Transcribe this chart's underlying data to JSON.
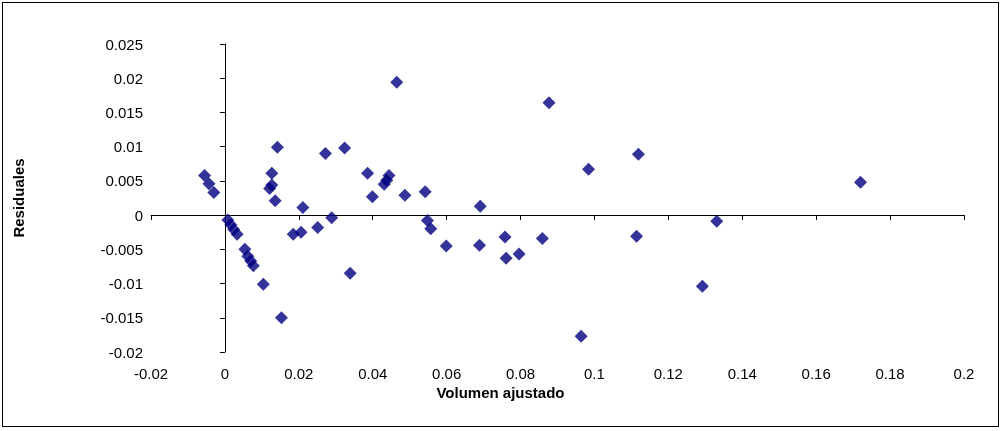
{
  "chart_data": {
    "type": "scatter",
    "xlabel": "Volumen ajustado",
    "ylabel": "Residuales",
    "xlim": [
      -0.02,
      0.2
    ],
    "xticks": [
      -0.02,
      0,
      0.02,
      0.04,
      0.06,
      0.08,
      0.1,
      0.12,
      0.14,
      0.16,
      0.18,
      0.2
    ],
    "ylim": [
      -0.02,
      0.025
    ],
    "yticks": [
      -0.02,
      -0.015,
      -0.01,
      -0.005,
      0,
      0.005,
      0.01,
      0.015,
      0.02,
      0.025
    ],
    "marker": "diamond",
    "series": [
      {
        "color": "#000080",
        "x": [
          -0.0055,
          -0.0043,
          -0.003,
          0.0008,
          0.0016,
          0.0024,
          0.0033,
          0.0054,
          0.0062,
          0.007,
          0.0077,
          0.0104,
          0.0153,
          0.0142,
          0.0127,
          0.0121,
          0.0127,
          0.0136,
          0.0185,
          0.0206,
          0.0211,
          0.0251,
          0.0272,
          0.0289,
          0.0324,
          0.0339,
          0.0386,
          0.0399,
          0.0431,
          0.0444,
          0.0438,
          0.0465,
          0.0487,
          0.0542,
          0.0548,
          0.0557,
          0.0599,
          0.0691,
          0.0689,
          0.0758,
          0.0761,
          0.0796,
          0.0859,
          0.0877,
          0.0964,
          0.0984,
          0.1119,
          0.1114,
          0.1292,
          0.1331,
          0.172
        ],
        "values": [
          0.0058,
          0.0046,
          0.0033,
          -0.0007,
          -0.0014,
          -0.0021,
          -0.0028,
          -0.005,
          -0.006,
          -0.0067,
          -0.0074,
          -0.0101,
          -0.015,
          0.0099,
          0.0061,
          0.0039,
          0.0044,
          0.0021,
          -0.0028,
          -0.0025,
          0.0011,
          -0.0018,
          0.009,
          -0.0004,
          0.0098,
          -0.0085,
          0.0061,
          0.0027,
          0.0045,
          0.0058,
          0.0051,
          0.0194,
          0.0029,
          0.0034,
          -0.0008,
          -0.002,
          -0.0045,
          0.0013,
          -0.0044,
          -0.0032,
          -0.0063,
          -0.0057,
          -0.0034,
          0.0164,
          -0.0177,
          0.0067,
          0.0089,
          -0.0031,
          -0.0104,
          -0.0009,
          0.0048
        ]
      }
    ]
  }
}
